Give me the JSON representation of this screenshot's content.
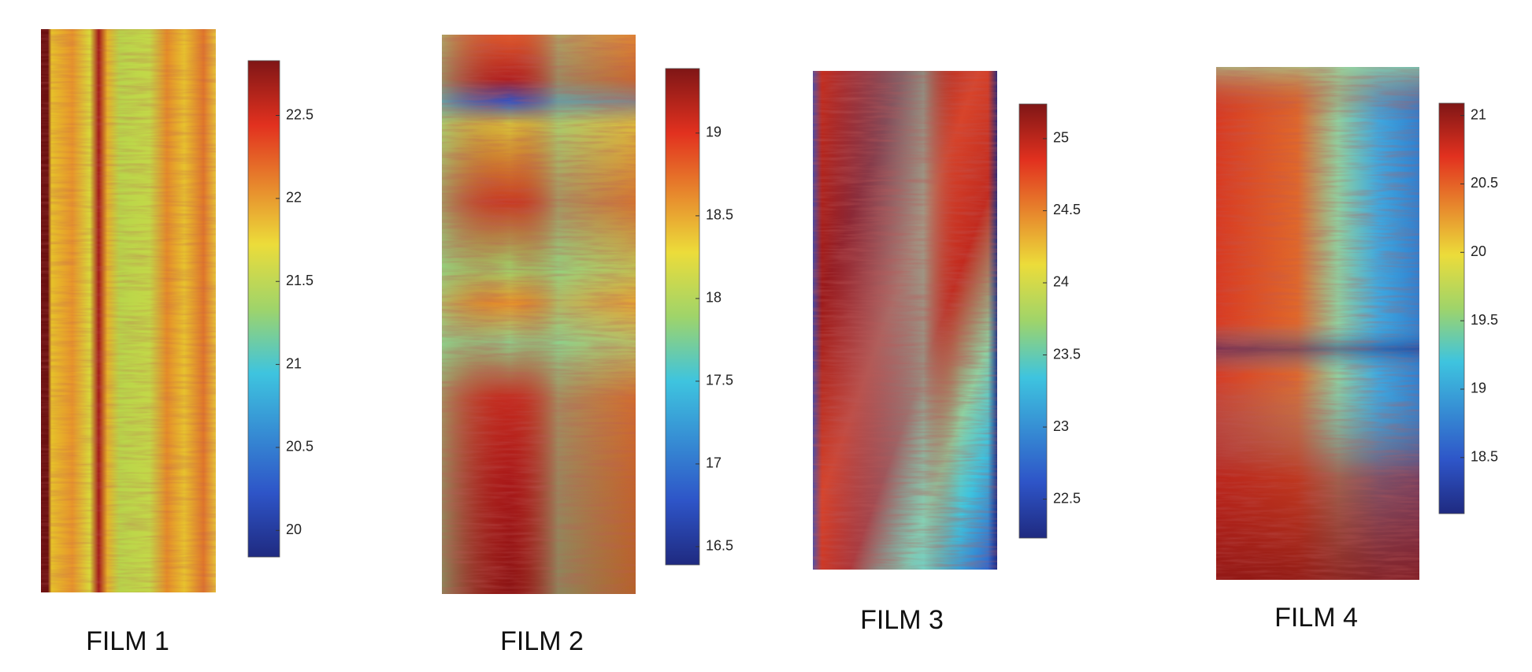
{
  "panels": [
    {
      "label": "FILM 1",
      "colorbar": {
        "lim": [
          19.84,
          22.83
        ],
        "ticks": [
          20,
          20.5,
          21,
          21.5,
          22,
          22.5
        ]
      }
    },
    {
      "label": "FILM 2",
      "colorbar": {
        "lim": [
          16.39,
          19.39
        ],
        "ticks": [
          16.5,
          17,
          17.5,
          18,
          18.5,
          19
        ]
      }
    },
    {
      "label": "FILM 3",
      "colorbar": {
        "lim": [
          22.23,
          25.24
        ],
        "ticks": [
          22.5,
          23,
          23.5,
          24,
          24.5,
          25
        ]
      }
    },
    {
      "label": "FILM 4",
      "colorbar": {
        "lim": [
          18.09,
          21.09
        ],
        "ticks": [
          18.5,
          19,
          19.5,
          20,
          20.5,
          21
        ]
      }
    }
  ]
}
